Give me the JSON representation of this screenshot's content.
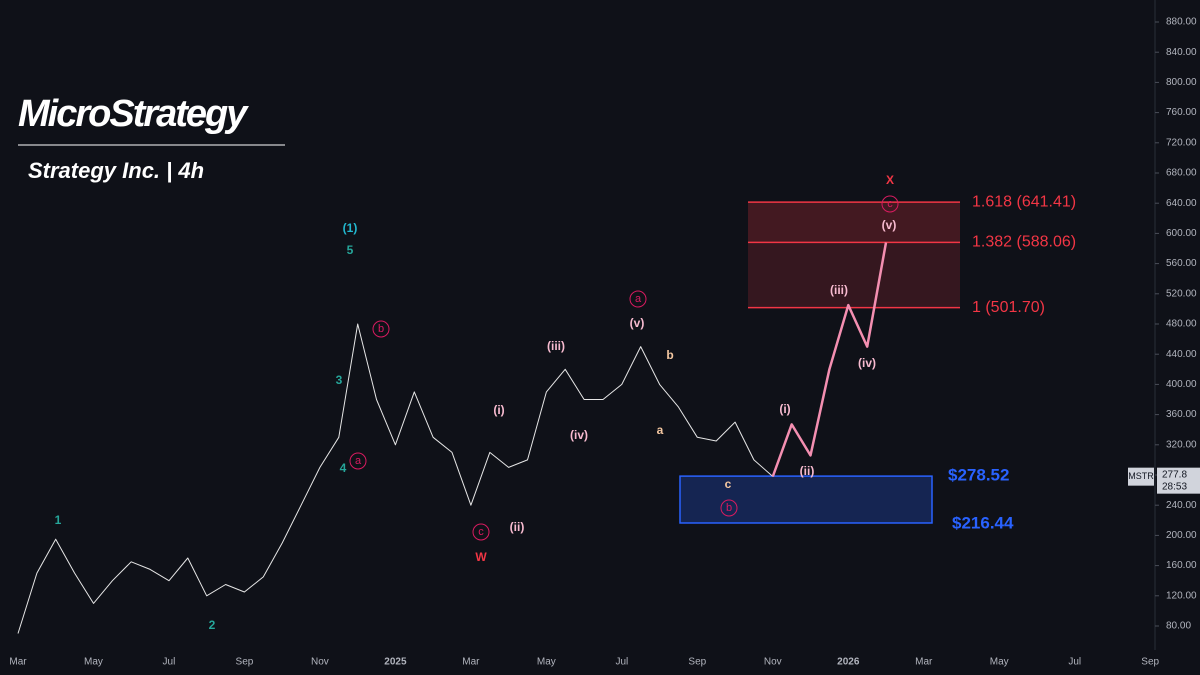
{
  "header": {
    "logo": "MicroStrategy",
    "subtitle": "Strategy Inc. | 4h"
  },
  "chart_data": {
    "type": "line",
    "categories": [
      "Mar",
      null,
      null,
      null,
      "May",
      null,
      null,
      null,
      "Jul",
      null,
      null,
      null,
      "Sep",
      null,
      null,
      null,
      "Nov",
      null,
      null,
      null,
      "2025",
      null,
      null,
      null,
      "Mar",
      null,
      null,
      null,
      "May",
      null,
      null,
      null,
      "Jul",
      null,
      null,
      null,
      "Sep",
      null,
      null,
      null,
      "Nov",
      null,
      null,
      null,
      "2026",
      null,
      null,
      null,
      "Mar",
      null,
      null,
      null,
      "May",
      null,
      null,
      null,
      "Jul",
      null,
      null,
      null,
      "Sep"
    ],
    "series": [
      {
        "name": "MSTR",
        "color": "#e6e6e6",
        "values": [
          70,
          150,
          195,
          150,
          110,
          140,
          165,
          155,
          140,
          170,
          120,
          135,
          125,
          145,
          190,
          240,
          290,
          330,
          480,
          380,
          320,
          390,
          330,
          310,
          240,
          310,
          290,
          300,
          390,
          420,
          380,
          380,
          400,
          450,
          400,
          370,
          330,
          325,
          350,
          300,
          278,
          null,
          null,
          null,
          null,
          null,
          null,
          null,
          null,
          null,
          null,
          null,
          null,
          null,
          null,
          null,
          null,
          null,
          null,
          null,
          null
        ]
      },
      {
        "name": "projection",
        "color": "#f48fb1",
        "values": [
          null,
          null,
          null,
          null,
          null,
          null,
          null,
          null,
          null,
          null,
          null,
          null,
          null,
          null,
          null,
          null,
          null,
          null,
          null,
          null,
          null,
          null,
          null,
          null,
          null,
          null,
          null,
          null,
          null,
          null,
          null,
          null,
          null,
          null,
          null,
          null,
          null,
          null,
          null,
          null,
          278,
          347,
          306,
          420,
          505,
          450,
          588,
          null,
          null,
          null,
          null,
          null,
          null,
          null,
          null,
          null,
          null,
          null,
          null,
          null,
          null
        ]
      }
    ],
    "ylim": [
      80,
      880
    ],
    "yticks": [
      {
        "value": 80,
        "label": "80.00"
      },
      {
        "value": 120,
        "label": "120.00"
      },
      {
        "value": 160,
        "label": "160.00"
      },
      {
        "value": 200,
        "label": "200.00"
      },
      {
        "value": 240,
        "label": "240.00"
      },
      {
        "value": 280,
        "label": "280.00"
      },
      {
        "value": 320,
        "label": "320.00"
      },
      {
        "value": 360,
        "label": "360.00"
      },
      {
        "value": 400,
        "label": "400.00"
      },
      {
        "value": 440,
        "label": "440.00"
      },
      {
        "value": 480,
        "label": "480.00"
      },
      {
        "value": 520,
        "label": "520.00"
      },
      {
        "value": 560,
        "label": "560.00"
      },
      {
        "value": 600,
        "label": "600.00"
      },
      {
        "value": 640,
        "label": "640.00"
      },
      {
        "value": 680,
        "label": "680.00"
      },
      {
        "value": 720,
        "label": "720.00"
      },
      {
        "value": 760,
        "label": "760.00"
      },
      {
        "value": 800,
        "label": "800.00"
      },
      {
        "value": 840,
        "label": "840.00"
      },
      {
        "value": 880,
        "label": "880.00"
      }
    ],
    "fib_levels": [
      {
        "value": 641.41,
        "label": "1.618 (641.41)"
      },
      {
        "value": 588.06,
        "label": "1.382 (588.06)"
      },
      {
        "value": 501.7,
        "label": "1 (501.70)"
      }
    ],
    "fib_color": "#f23645",
    "zone": {
      "top": 278.52,
      "bottom": 216.44,
      "top_label": "$278.52",
      "bottom_label": "$216.44",
      "color": "#2962ff"
    },
    "price_tag": {
      "symbol": "MSTR",
      "value": 277.8,
      "countdown": "28:53"
    },
    "annotations": [
      {
        "text": "(1)",
        "color": "#22b8cf"
      },
      {
        "text": "5",
        "color": "#26a69a"
      },
      {
        "text": "3",
        "color": "#26a69a"
      },
      {
        "text": "4",
        "color": "#26a69a"
      },
      {
        "text": "1",
        "color": "#26a69a"
      },
      {
        "text": "2",
        "color": "#26a69a"
      },
      {
        "text": "b",
        "color": "#d81b60",
        "circled": true
      },
      {
        "text": "a",
        "color": "#d81b60",
        "circled": true
      },
      {
        "text": "c",
        "color": "#d81b60",
        "circled": true
      },
      {
        "text": "W",
        "color": "#f23645"
      },
      {
        "text": "(ii)",
        "color": "#f8bbd0"
      },
      {
        "text": "(i)",
        "color": "#f8bbd0"
      },
      {
        "text": "(iii)",
        "color": "#f8bbd0"
      },
      {
        "text": "(iv)",
        "color": "#f8bbd0"
      },
      {
        "text": "a",
        "color": "#d81b60",
        "circled": true
      },
      {
        "text": "(v)",
        "color": "#f8bbd0"
      },
      {
        "text": "b",
        "color": "#f4c7a1"
      },
      {
        "text": "a",
        "color": "#f4c7a1"
      },
      {
        "text": "c",
        "color": "#f4c7a1"
      },
      {
        "text": "b",
        "color": "#d81b60",
        "circled": true
      },
      {
        "text": "(i)",
        "color": "#f8bbd0"
      },
      {
        "text": "(ii)",
        "color": "#f8bbd0"
      },
      {
        "text": "(iii)",
        "color": "#f8bbd0"
      },
      {
        "text": "(iv)",
        "color": "#f8bbd0"
      },
      {
        "text": "(v)",
        "color": "#f8bbd0"
      },
      {
        "text": "c",
        "color": "#d81b60",
        "circled": true
      },
      {
        "text": "X",
        "color": "#f23645"
      }
    ]
  }
}
